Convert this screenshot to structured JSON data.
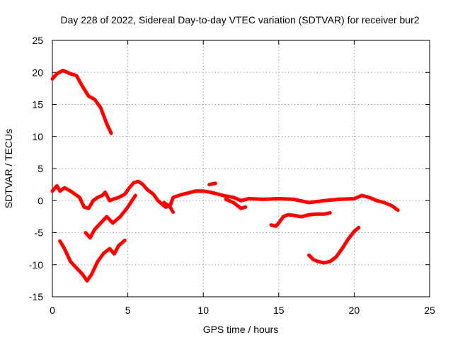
{
  "chart_data": {
    "type": "scatter",
    "title": "Day 228 of 2022, Sidereal Day-to-day VTEC variation (SDTVAR) for receiver bur2",
    "xlabel": "GPS time / hours",
    "ylabel": "SDTVAR / TECUs",
    "xlim": [
      0,
      25
    ],
    "ylim": [
      -15,
      25
    ],
    "xticks": [
      0,
      5,
      10,
      15,
      20,
      25
    ],
    "yticks": [
      -15,
      -10,
      -5,
      0,
      5,
      10,
      15,
      20,
      25
    ],
    "grid": true,
    "color": "#ff0000",
    "series": [
      {
        "name": "track-1",
        "x": [
          0.0,
          0.3,
          0.7,
          1.2,
          1.6,
          2.0,
          2.4,
          2.8,
          3.2,
          3.6,
          3.9
        ],
        "y": [
          19.0,
          19.8,
          20.3,
          19.8,
          19.5,
          17.8,
          16.3,
          15.8,
          14.5,
          12.0,
          10.5
        ]
      },
      {
        "name": "track-2",
        "x": [
          0.0,
          0.3,
          0.5,
          0.8,
          1.2,
          1.5,
          1.8,
          2.1,
          2.4,
          2.7,
          3.0,
          3.3,
          3.5,
          3.8,
          4.0,
          4.4,
          4.8,
          5.1,
          5.4,
          5.7,
          6.0,
          6.3,
          6.7,
          7.0,
          7.5,
          7.8,
          8.0,
          8.5,
          9.0,
          9.5,
          10.0,
          10.5,
          11.0,
          11.5,
          12.0,
          12.5,
          13.0,
          14.0,
          15.0,
          16.0,
          17.0,
          18.0,
          19.0,
          20.0,
          20.5,
          21.0,
          21.5,
          22.0,
          22.5,
          22.9
        ],
        "y": [
          1.5,
          2.3,
          1.5,
          2.0,
          1.5,
          1.0,
          0.5,
          -1.0,
          -1.2,
          0.0,
          0.5,
          0.8,
          1.3,
          0.0,
          0.2,
          0.5,
          1.0,
          2.0,
          2.8,
          3.0,
          2.5,
          1.7,
          1.0,
          0.0,
          -1.0,
          -0.8,
          0.5,
          0.9,
          1.2,
          1.5,
          1.5,
          1.3,
          1.0,
          0.7,
          0.5,
          0.0,
          0.3,
          0.2,
          0.3,
          0.2,
          -0.3,
          0.0,
          0.2,
          0.3,
          0.8,
          0.5,
          0.0,
          -0.3,
          -0.8,
          -1.5
        ]
      },
      {
        "name": "track-3",
        "x": [
          2.2,
          2.5,
          2.8,
          3.2,
          3.6,
          4.0,
          4.5,
          5.0,
          5.5
        ],
        "y": [
          -5.0,
          -5.8,
          -4.5,
          -3.5,
          -2.5,
          -3.5,
          -2.5,
          -1.0,
          0.8
        ]
      },
      {
        "name": "track-4",
        "x": [
          0.5,
          0.8,
          1.2,
          1.6,
          2.0,
          2.3,
          2.6,
          3.0,
          3.4,
          3.8,
          4.1,
          4.4,
          4.8
        ],
        "y": [
          -6.3,
          -7.5,
          -9.5,
          -10.5,
          -11.5,
          -12.5,
          -11.5,
          -9.5,
          -8.2,
          -7.5,
          -8.3,
          -7.0,
          -6.2
        ]
      },
      {
        "name": "track-5",
        "x": [
          7.4,
          7.8,
          8.0
        ],
        "y": [
          -0.3,
          -1.0,
          -1.8
        ]
      },
      {
        "name": "track-6",
        "x": [
          10.4,
          10.8
        ],
        "y": [
          2.5,
          2.7
        ]
      },
      {
        "name": "track-7",
        "x": [
          11.5,
          12.0,
          12.5,
          12.8
        ],
        "y": [
          0.2,
          -0.3,
          -1.2,
          -1.0
        ]
      },
      {
        "name": "track-8",
        "x": [
          14.5,
          14.8,
          15.0,
          15.3,
          15.6,
          16.0,
          16.5,
          17.0,
          17.5,
          18.0,
          18.4
        ],
        "y": [
          -3.8,
          -4.0,
          -3.5,
          -2.5,
          -2.2,
          -2.3,
          -2.5,
          -2.2,
          -2.1,
          -2.1,
          -1.9
        ]
      },
      {
        "name": "track-9",
        "x": [
          17.0,
          17.3,
          17.6,
          18.0,
          18.4,
          18.8,
          19.2,
          19.6,
          20.0,
          20.3
        ],
        "y": [
          -8.5,
          -9.2,
          -9.5,
          -9.7,
          -9.5,
          -8.8,
          -7.5,
          -6.0,
          -4.8,
          -4.2
        ]
      }
    ]
  }
}
